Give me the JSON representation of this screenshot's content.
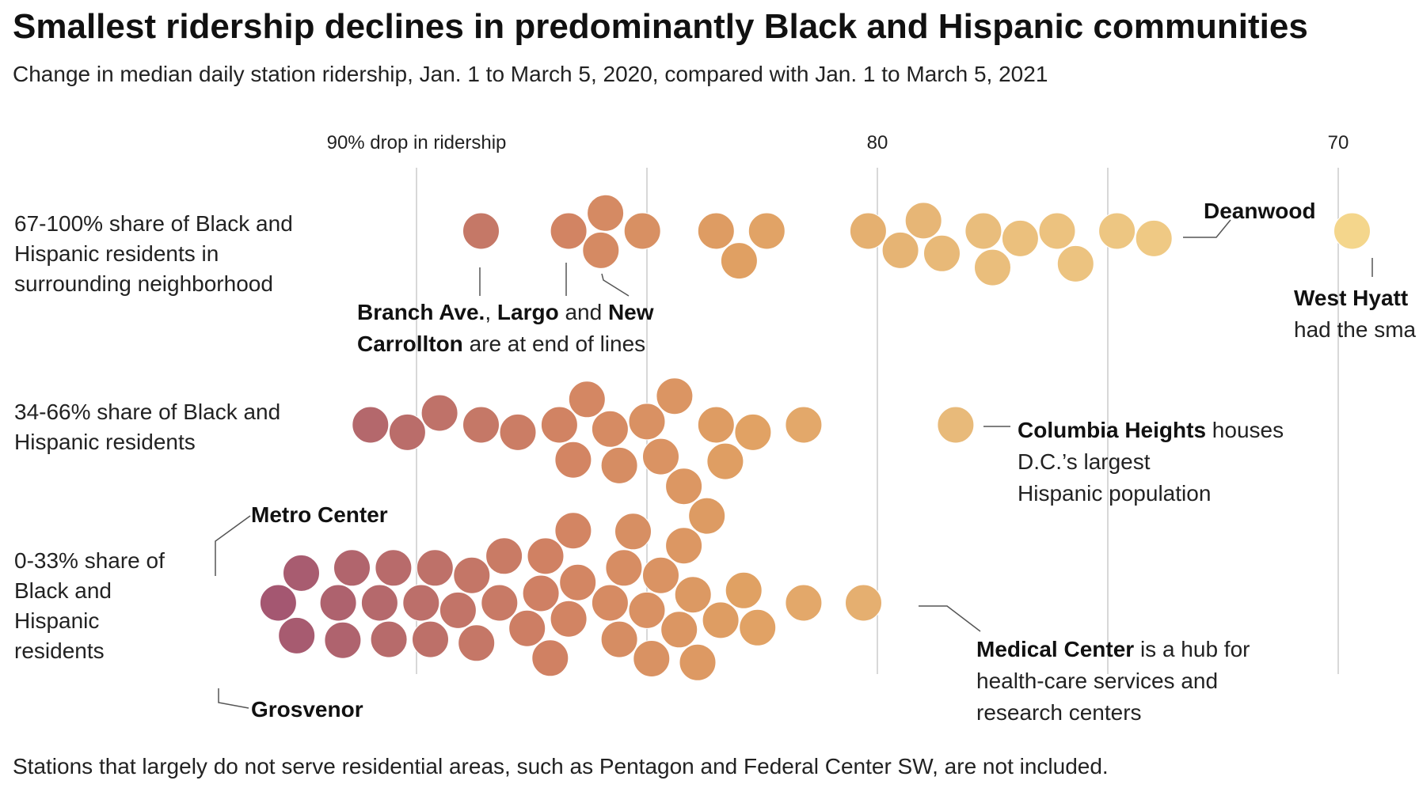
{
  "header": {
    "title": "Smallest ridership declines in predominantly Black and Hispanic communities",
    "subtitle": "Change in median daily station ridership, Jan. 1 to March 5, 2020, compared with Jan. 1 to March 5, 2021"
  },
  "footnote": "Stations that largely do not serve residential areas, such as Pentagon and Federal Center SW, are not included.",
  "chart_data": {
    "type": "scatter",
    "subtype": "beeswarm",
    "x_unit": "% drop in ridership",
    "x_direction": "reversed (larger drop on the left)",
    "xlim": [
      93.5,
      69
    ],
    "grid": "vertical lines at 90, 85, 80, 75, 70",
    "tick_labels": [
      {
        "value": 90,
        "label": "90% drop in ridership"
      },
      {
        "value": 80,
        "label": "80"
      },
      {
        "value": 70,
        "label": "70"
      }
    ],
    "color_scale": {
      "description": "dot color follows ridership drop: purple = largest drop, yellow = smallest drop",
      "stops": [
        {
          "value": 94,
          "color": "#9c4f74"
        },
        {
          "value": 91,
          "color": "#b4686c"
        },
        {
          "value": 87,
          "color": "#d18263"
        },
        {
          "value": 83,
          "color": "#e0a063"
        },
        {
          "value": 78,
          "color": "#e9bc7b"
        },
        {
          "value": 70,
          "color": "#f4d68c"
        }
      ]
    },
    "categories": [
      "67-100% share of Black and Hispanic residents in surrounding neighborhood",
      "34-66% share of Black and Hispanic residents",
      "0-33% share of Black and Hispanic residents"
    ],
    "series": [
      {
        "name": "67-100% share of Black and Hispanic residents in surrounding neighborhood",
        "values": [
          88.6,
          86.7,
          85.9,
          85.1,
          86.0,
          83.5,
          82.4,
          83.0,
          80.2,
          79.5,
          78.6,
          79.0,
          77.7,
          76.9,
          77.5,
          76.1,
          75.7,
          74.8,
          74.0,
          69.7
        ]
      },
      {
        "name": "34-66% share of Black and Hispanic residents",
        "values": [
          91.0,
          90.2,
          89.5,
          88.6,
          87.8,
          86.9,
          86.6,
          86.3,
          85.8,
          85.6,
          85.0,
          84.7,
          84.4,
          84.2,
          83.3,
          83.5,
          82.7,
          81.6,
          78.3
        ]
      },
      {
        "name": "0-33% share of Black and Hispanic residents",
        "values": [
          93.0,
          92.6,
          92.5,
          91.7,
          91.4,
          91.6,
          90.8,
          90.5,
          90.6,
          89.9,
          89.7,
          89.6,
          89.1,
          88.8,
          88.7,
          88.2,
          88.1,
          87.6,
          87.3,
          87.2,
          87.1,
          86.7,
          86.5,
          86.6,
          85.8,
          85.6,
          85.5,
          85.3,
          85.0,
          84.9,
          84.7,
          84.2,
          84.0,
          84.3,
          83.9,
          83.7,
          83.4,
          82.9,
          82.6,
          81.6,
          80.3
        ]
      }
    ],
    "annotations": [
      {
        "station": "Deanwood",
        "row": 0,
        "value": 74.0,
        "text": "Deanwood"
      },
      {
        "station": "West Hyattsville",
        "row": 0,
        "value": 69.7,
        "text": "West Hyatt… had the sma…"
      },
      {
        "stations": [
          "Branch Ave.",
          "Largo",
          "New Carrollton"
        ],
        "row": 0,
        "text": "Branch Ave., Largo and New Carrollton are at end of lines"
      },
      {
        "station": "Columbia Heights",
        "row": 1,
        "value": 78.3,
        "text": "Columbia Heights houses D.C.’s largest Hispanic population"
      },
      {
        "station": "Metro Center",
        "row": 2,
        "value": 93.0,
        "text": "Metro Center"
      },
      {
        "station": "Grosvenor",
        "row": 2,
        "value": 92.5,
        "text": "Grosvenor"
      },
      {
        "station": "Medical Center",
        "row": 2,
        "value": 80.3,
        "text": "Medical Center is a hub for health-care services and research centers"
      }
    ]
  },
  "labels": {
    "row1": [
      "67-100% share of Black and",
      "Hispanic residents in",
      "surrounding neighborhood"
    ],
    "row2": [
      "34-66% share of Black and",
      "Hispanic residents"
    ],
    "row3": [
      "0-33% share of",
      "Black and",
      "Hispanic",
      "residents"
    ],
    "deanwood": "Deanwood",
    "west_hyatt_name": "West Hyatt",
    "west_hyatt_rest": "had the sma",
    "branch_ave": "Branch Ave.",
    "comma": ",",
    "largo": "Largo",
    "and": "and",
    "new": "New",
    "carrollton": "Carrollton",
    "end_of_lines": "are at end of lines",
    "columbia_heights": "Columbia Heights",
    "columbia_rest": "houses",
    "columbia_line2": "D.C.’s largest",
    "columbia_line3": "Hispanic population",
    "metro_center": "Metro Center",
    "grosvenor": "Grosvenor",
    "medical_center": "Medical Center",
    "medical_rest": "is a hub for",
    "medical_line2": "health-care services and",
    "medical_line3": "research centers"
  }
}
